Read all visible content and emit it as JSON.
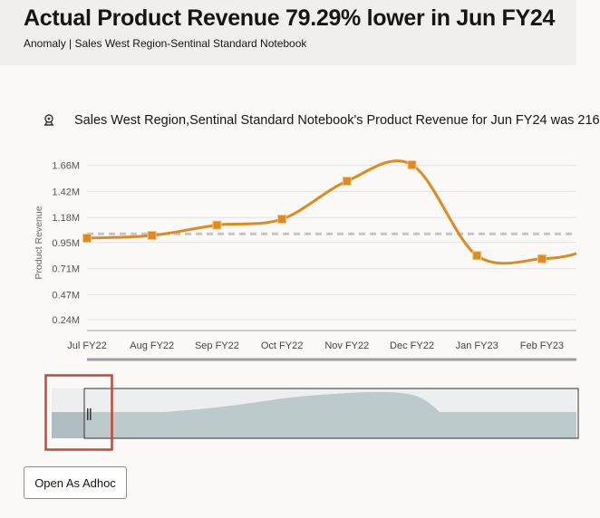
{
  "header": {
    "title": "Actual Product Revenue 79.29% lower in Jun FY24",
    "subtitle": "Anomaly | Sales West Region-Sentinal Standard Notebook"
  },
  "summary": {
    "icon": "insight-icon",
    "text": "Sales West Region,Sentinal Standard Notebook's Product Revenue for Jun FY24 was 216"
  },
  "chart_data": {
    "type": "line",
    "ylabel": "Product Revenue",
    "y_ticks": [
      "1.66M",
      "1.42M",
      "1.18M",
      "0.95M",
      "0.71M",
      "0.47M",
      "0.24M"
    ],
    "y_tick_values": [
      1.66,
      1.42,
      1.18,
      0.95,
      0.71,
      0.47,
      0.24
    ],
    "ylim": [
      0.14,
      1.8
    ],
    "categories": [
      "Jul FY22",
      "Aug FY22",
      "Sep FY22",
      "Oct FY22",
      "Nov FY22",
      "Dec FY22",
      "Jan FY23",
      "Feb FY23"
    ],
    "series": [
      {
        "values": [
          0.99,
          1.015,
          1.11,
          1.165,
          1.515,
          1.665,
          0.83,
          0.8
        ],
        "color": "#e08a1e"
      }
    ],
    "reference_line": {
      "value": 1.03,
      "style": "dashed",
      "color": "#c4c4c4"
    },
    "grid": true,
    "units": "millions"
  },
  "navigator": {
    "fill_color": "#bdcacb",
    "highlight_color": "#c74634"
  },
  "actions": {
    "open_adhoc": "Open As Adhoc"
  }
}
